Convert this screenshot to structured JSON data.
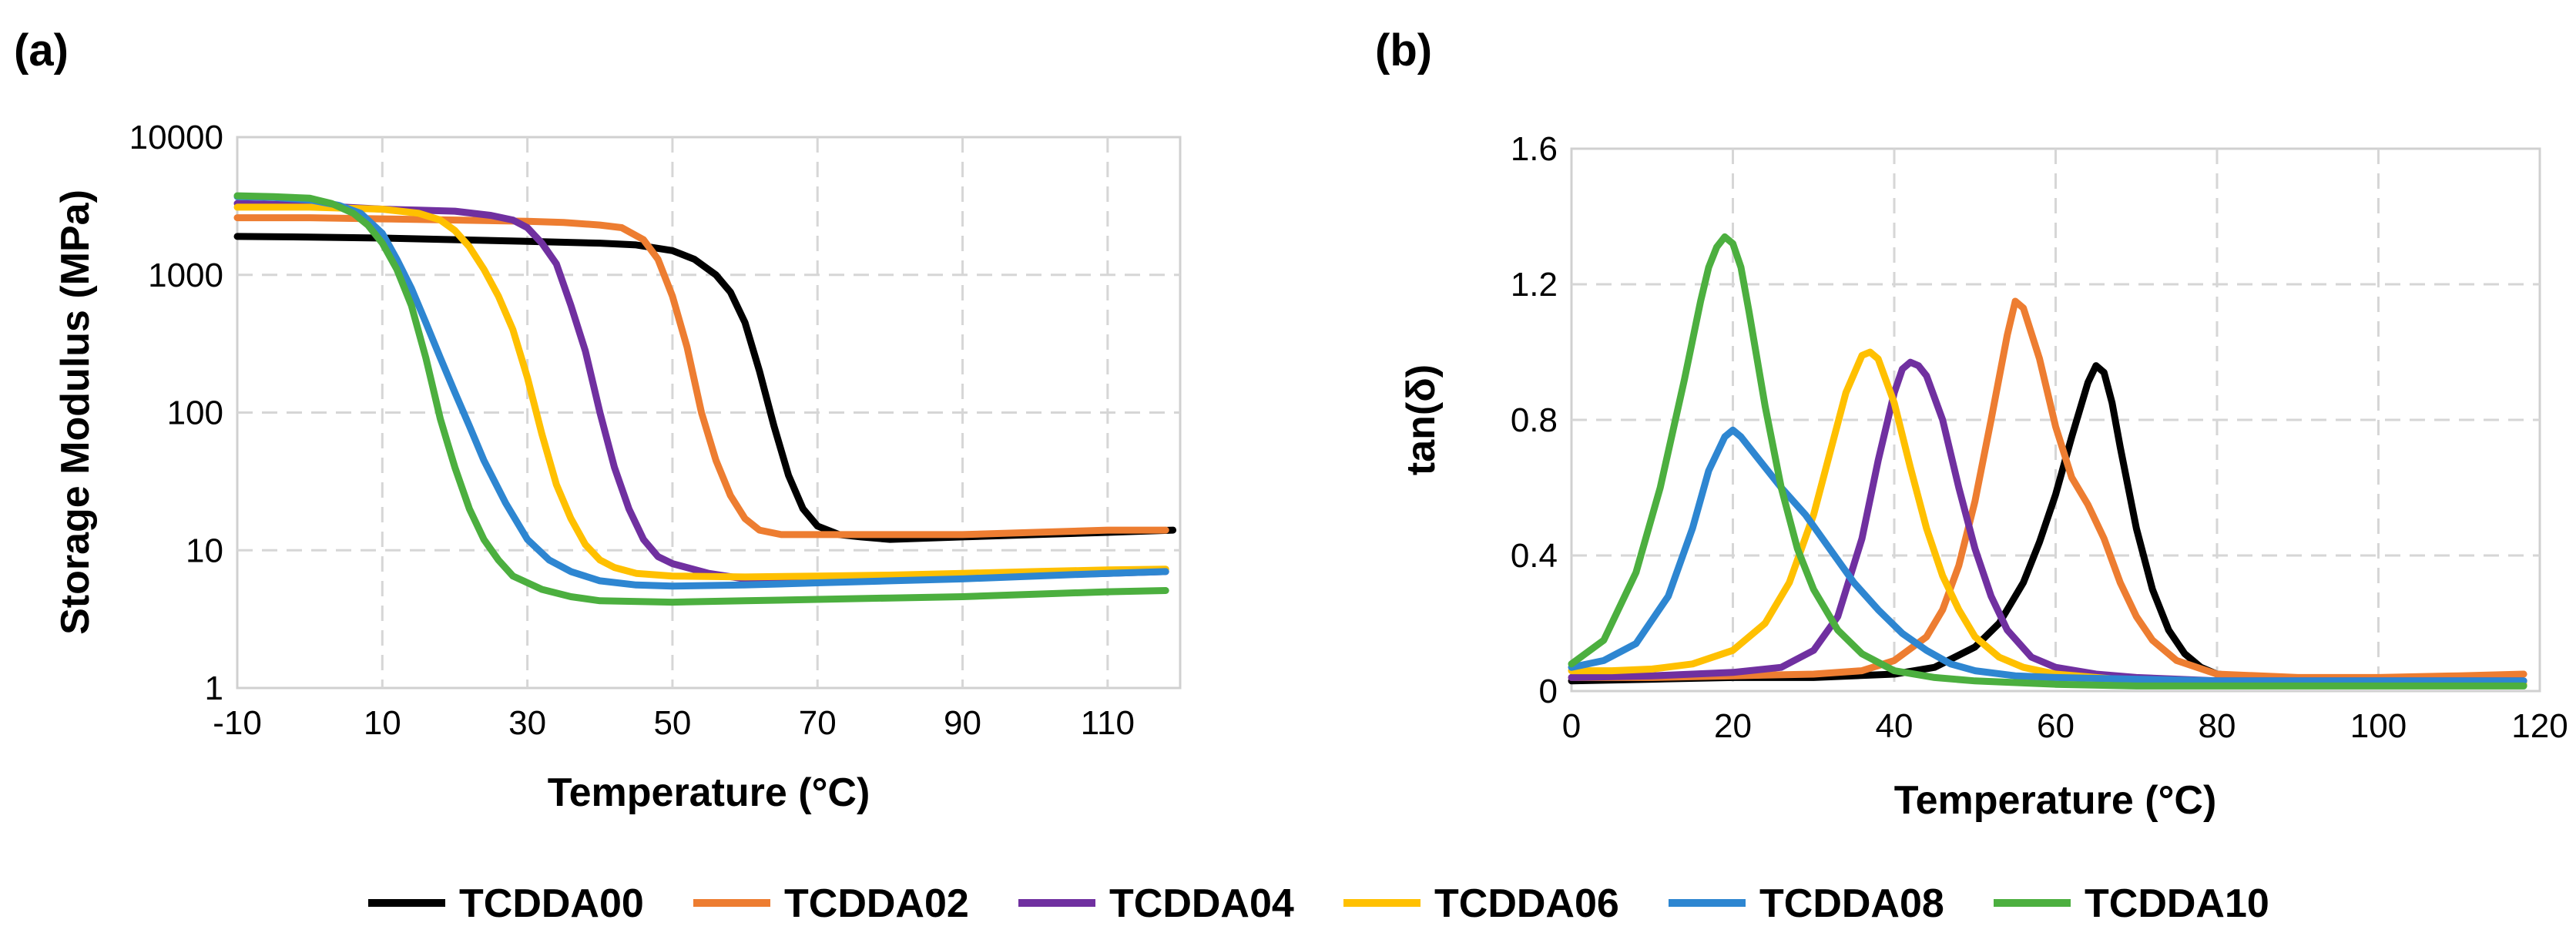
{
  "colors": {
    "TCDDA00": "#000000",
    "TCDDA02": "#ED7D31",
    "TCDDA04": "#7030A0",
    "TCDDA06": "#FFC000",
    "TCDDA08": "#2E86D1",
    "TCDDA10": "#4CAF3F"
  },
  "legend": [
    "TCDDA00",
    "TCDDA02",
    "TCDDA04",
    "TCDDA06",
    "TCDDA08",
    "TCDDA10"
  ],
  "chart_data": [
    {
      "panel": "(a)",
      "type": "line",
      "title": "",
      "xlabel": "Temperature (°C)",
      "ylabel": "Storage Modulus (MPa)",
      "yscale": "log",
      "xlim": [
        -10,
        120
      ],
      "ylim": [
        1,
        10000
      ],
      "xticks": [
        -10,
        10,
        30,
        50,
        70,
        90,
        110
      ],
      "yticks": [
        1,
        10,
        100,
        1000,
        10000
      ],
      "ytick_labels": [
        "1",
        "10",
        "100",
        "1000",
        "10000"
      ],
      "series": [
        {
          "name": "TCDDA00",
          "x": [
            -10,
            0,
            10,
            20,
            30,
            40,
            45,
            50,
            53,
            56,
            58,
            60,
            62,
            64,
            66,
            68,
            70,
            73,
            76,
            80,
            90,
            100,
            110,
            119
          ],
          "y": [
            1900,
            1880,
            1850,
            1800,
            1750,
            1700,
            1650,
            1500,
            1300,
            1000,
            750,
            450,
            200,
            80,
            35,
            20,
            15,
            13,
            12.5,
            12,
            12.5,
            13,
            13.5,
            14
          ]
        },
        {
          "name": "TCDDA02",
          "x": [
            -10,
            0,
            10,
            20,
            30,
            35,
            40,
            43,
            46,
            48,
            50,
            52,
            54,
            56,
            58,
            60,
            62,
            65,
            70,
            80,
            90,
            100,
            110,
            118
          ],
          "y": [
            2600,
            2600,
            2550,
            2500,
            2450,
            2400,
            2300,
            2200,
            1800,
            1300,
            700,
            300,
            100,
            45,
            25,
            17,
            14,
            13,
            13,
            13,
            13,
            13.5,
            14,
            14
          ]
        },
        {
          "name": "TCDDA04",
          "x": [
            -10,
            0,
            10,
            15,
            20,
            25,
            28,
            30,
            32,
            34,
            36,
            38,
            40,
            42,
            44,
            46,
            48,
            50,
            55,
            60,
            70,
            80,
            90,
            100,
            110,
            118
          ],
          "y": [
            3300,
            3200,
            3000,
            2950,
            2900,
            2700,
            2500,
            2200,
            1700,
            1200,
            600,
            280,
            100,
            40,
            20,
            12,
            9,
            8,
            6.8,
            6.2,
            6,
            6.2,
            6.4,
            6.6,
            6.8,
            7
          ]
        },
        {
          "name": "TCDDA06",
          "x": [
            -10,
            0,
            5,
            10,
            15,
            18,
            20,
            22,
            24,
            26,
            28,
            30,
            32,
            34,
            36,
            38,
            40,
            42,
            45,
            50,
            60,
            70,
            80,
            90,
            100,
            110,
            118
          ],
          "y": [
            3100,
            3100,
            3050,
            3000,
            2800,
            2500,
            2100,
            1600,
            1100,
            700,
            400,
            180,
            70,
            30,
            17,
            11,
            8.5,
            7.5,
            6.8,
            6.5,
            6.4,
            6.5,
            6.6,
            6.8,
            7,
            7.2,
            7.3
          ]
        },
        {
          "name": "TCDDA08",
          "x": [
            -10,
            -5,
            0,
            4,
            7,
            10,
            12,
            14,
            16,
            18,
            20,
            22,
            24,
            27,
            30,
            33,
            36,
            40,
            45,
            50,
            60,
            70,
            80,
            90,
            100,
            110,
            118
          ],
          "y": [
            3700,
            3650,
            3500,
            3200,
            2800,
            2000,
            1300,
            800,
            450,
            250,
            140,
            80,
            45,
            22,
            12,
            8.5,
            7,
            6,
            5.6,
            5.5,
            5.6,
            5.8,
            6,
            6.2,
            6.5,
            6.8,
            7
          ]
        },
        {
          "name": "TCDDA10",
          "x": [
            -10,
            -5,
            0,
            3,
            6,
            8,
            10,
            12,
            14,
            16,
            17,
            18,
            19,
            20,
            22,
            24,
            26,
            28,
            32,
            36,
            40,
            50,
            60,
            70,
            80,
            90,
            100,
            110,
            118
          ],
          "y": [
            3750,
            3700,
            3600,
            3300,
            2800,
            2300,
            1700,
            1100,
            600,
            250,
            150,
            90,
            60,
            40,
            20,
            12,
            8.5,
            6.5,
            5.2,
            4.6,
            4.3,
            4.2,
            4.3,
            4.4,
            4.5,
            4.6,
            4.8,
            5.0,
            5.1
          ]
        }
      ]
    },
    {
      "panel": "(b)",
      "type": "line",
      "title": "",
      "xlabel": "Temperature (°C)",
      "ylabel": "tan(δ)",
      "yscale": "linear",
      "xlim": [
        0,
        120
      ],
      "ylim": [
        0,
        1.6
      ],
      "xticks": [
        0,
        20,
        40,
        60,
        80,
        100,
        120
      ],
      "yticks": [
        0,
        0.4,
        0.8,
        1.2,
        1.6
      ],
      "ytick_labels": [
        "0",
        "0.4",
        "0.8",
        "1.2",
        "1.6"
      ],
      "series": [
        {
          "name": "TCDDA00",
          "x": [
            0,
            10,
            20,
            30,
            40,
            45,
            50,
            53,
            56,
            58,
            60,
            62,
            64,
            65,
            66,
            67,
            68,
            70,
            72,
            74,
            76,
            78,
            80,
            85,
            90,
            100,
            110,
            118
          ],
          "y": [
            0.03,
            0.035,
            0.04,
            0.04,
            0.05,
            0.07,
            0.13,
            0.2,
            0.32,
            0.44,
            0.58,
            0.75,
            0.91,
            0.96,
            0.94,
            0.85,
            0.72,
            0.48,
            0.3,
            0.18,
            0.11,
            0.07,
            0.05,
            0.04,
            0.035,
            0.03,
            0.03,
            0.03
          ]
        },
        {
          "name": "TCDDA02",
          "x": [
            0,
            10,
            20,
            30,
            36,
            40,
            44,
            46,
            48,
            50,
            52,
            54,
            55,
            56,
            58,
            60,
            62,
            64,
            66,
            68,
            70,
            72,
            75,
            80,
            90,
            100,
            110,
            118
          ],
          "y": [
            0.04,
            0.04,
            0.045,
            0.05,
            0.06,
            0.09,
            0.16,
            0.24,
            0.37,
            0.56,
            0.8,
            1.05,
            1.15,
            1.13,
            0.98,
            0.78,
            0.63,
            0.55,
            0.45,
            0.32,
            0.22,
            0.15,
            0.09,
            0.05,
            0.04,
            0.04,
            0.045,
            0.05
          ]
        },
        {
          "name": "TCDDA04",
          "x": [
            0,
            10,
            20,
            26,
            30,
            33,
            36,
            38,
            40,
            41,
            42,
            43,
            44,
            46,
            48,
            50,
            52,
            54,
            57,
            60,
            65,
            70,
            80,
            90,
            100,
            110,
            118
          ],
          "y": [
            0.04,
            0.045,
            0.055,
            0.07,
            0.12,
            0.22,
            0.45,
            0.68,
            0.88,
            0.95,
            0.97,
            0.96,
            0.93,
            0.8,
            0.6,
            0.42,
            0.28,
            0.18,
            0.1,
            0.07,
            0.05,
            0.04,
            0.03,
            0.03,
            0.03,
            0.03,
            0.03
          ]
        },
        {
          "name": "TCDDA06",
          "x": [
            0,
            5,
            10,
            15,
            20,
            24,
            27,
            30,
            32,
            34,
            36,
            37,
            38,
            40,
            42,
            44,
            46,
            48,
            50,
            53,
            56,
            60,
            65,
            70,
            80,
            90,
            100,
            110,
            118
          ],
          "y": [
            0.06,
            0.06,
            0.065,
            0.08,
            0.12,
            0.2,
            0.32,
            0.52,
            0.7,
            0.88,
            0.99,
            1.0,
            0.98,
            0.85,
            0.66,
            0.48,
            0.34,
            0.24,
            0.16,
            0.1,
            0.07,
            0.05,
            0.04,
            0.03,
            0.025,
            0.02,
            0.02,
            0.02,
            0.02
          ]
        },
        {
          "name": "TCDDA08",
          "x": [
            0,
            4,
            8,
            12,
            15,
            17,
            19,
            20,
            21,
            23,
            26,
            29,
            32,
            35,
            38,
            41,
            44,
            47,
            50,
            55,
            60,
            70,
            80,
            90,
            100,
            110,
            118
          ],
          "y": [
            0.07,
            0.09,
            0.14,
            0.28,
            0.48,
            0.65,
            0.75,
            0.77,
            0.75,
            0.69,
            0.6,
            0.52,
            0.42,
            0.32,
            0.24,
            0.17,
            0.12,
            0.08,
            0.06,
            0.045,
            0.04,
            0.035,
            0.03,
            0.03,
            0.03,
            0.03,
            0.03
          ]
        },
        {
          "name": "TCDDA10",
          "x": [
            0,
            4,
            8,
            11,
            14,
            16,
            17,
            18,
            19,
            20,
            21,
            22,
            23,
            24,
            26,
            28,
            30,
            33,
            36,
            40,
            45,
            50,
            60,
            70,
            80,
            90,
            100,
            110,
            118
          ],
          "y": [
            0.08,
            0.15,
            0.35,
            0.6,
            0.92,
            1.15,
            1.25,
            1.31,
            1.34,
            1.32,
            1.25,
            1.12,
            0.98,
            0.84,
            0.6,
            0.42,
            0.3,
            0.18,
            0.11,
            0.06,
            0.04,
            0.03,
            0.02,
            0.015,
            0.015,
            0.015,
            0.015,
            0.015,
            0.015
          ]
        }
      ]
    }
  ]
}
